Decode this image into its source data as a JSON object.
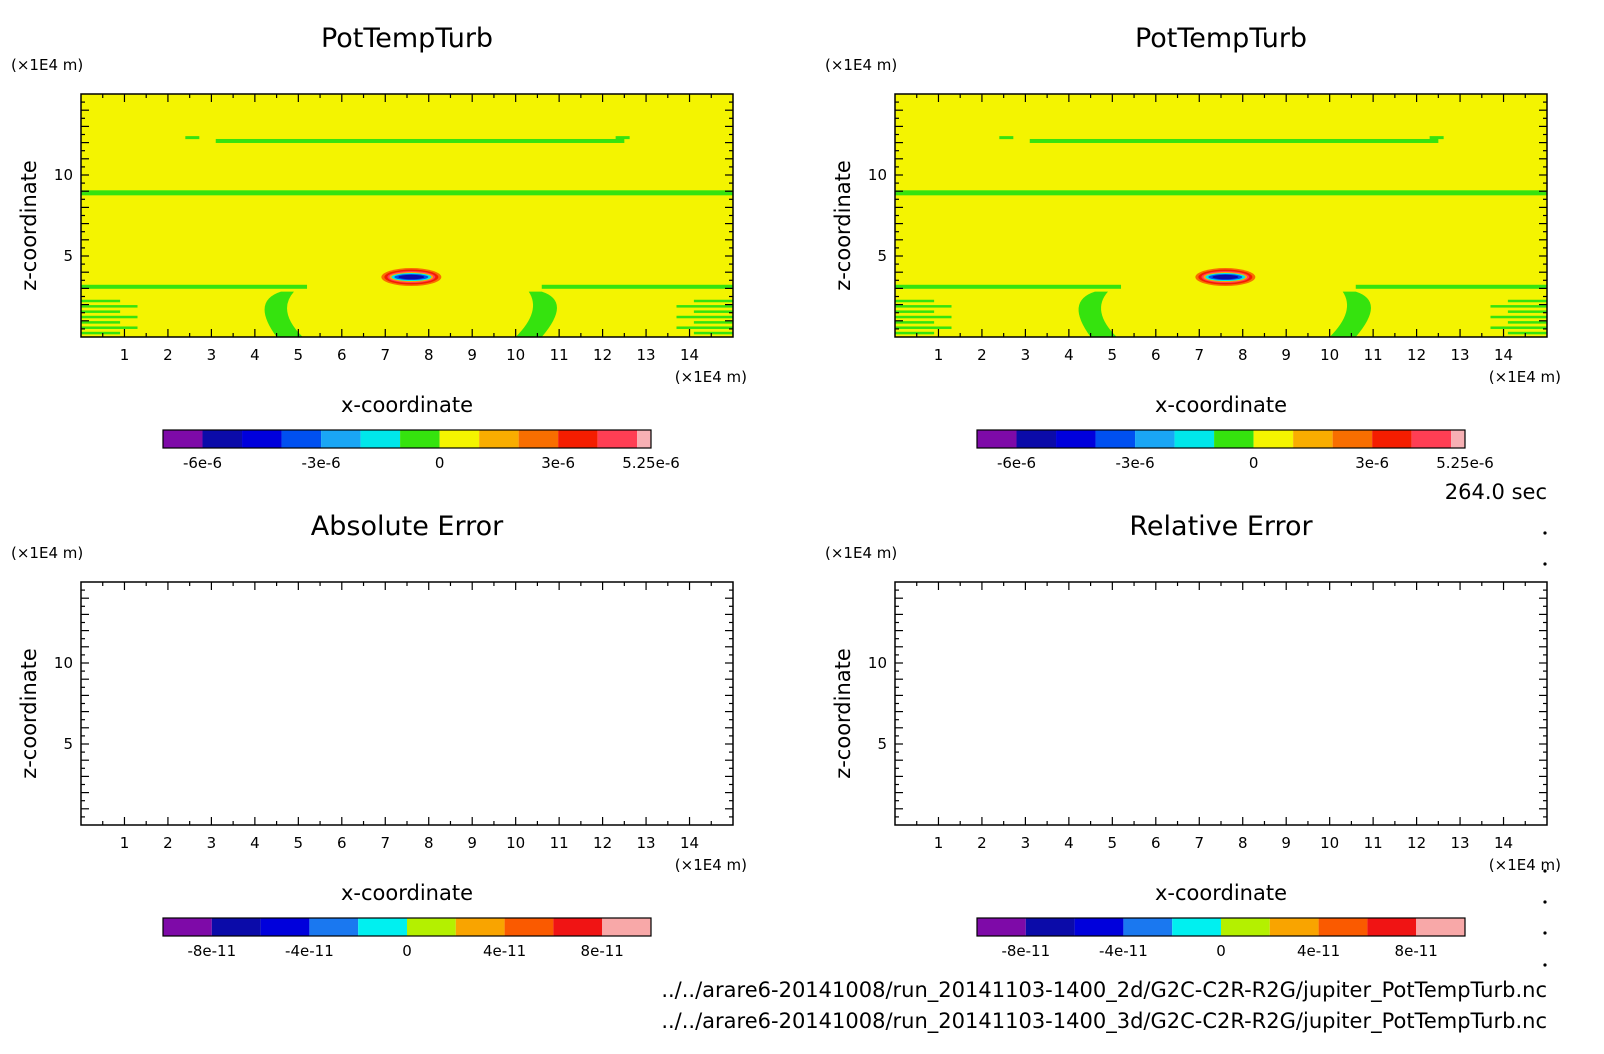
{
  "figure": {
    "time_label": "264.0 sec",
    "file_paths": [
      "../../arare6-20141008/run_20141103-1400_2d/G2C-C2R-R2G/jupiter_PotTempTurb.nc",
      "../../arare6-20141008/run_20141103-1400_3d/G2C-C2R-R2G/jupiter_PotTempTurb.nc"
    ],
    "grid": false
  },
  "chart_data": [
    {
      "type": "heatmap",
      "title": "PotTempTurb",
      "xlabel": "x-coordinate",
      "ylabel": "z-coordinate",
      "x_unit": "(×1E4 m)",
      "y_unit": "(×1E4 m)",
      "xlim": [
        0,
        15
      ],
      "ylim": [
        0,
        15
      ],
      "x_ticks": [
        "1",
        "2",
        "3",
        "4",
        "5",
        "6",
        "7",
        "8",
        "9",
        "10",
        "11",
        "12",
        "13",
        "14"
      ],
      "y_ticks": [
        "5",
        "10"
      ],
      "field": {
        "background": "0",
        "anomaly": {
          "x_center": 7.6,
          "z_center": 3.7,
          "max": "5.25e-6",
          "min": "-6e-6"
        },
        "near_zero_bands_z": [
          12.1,
          8.9,
          3.1
        ],
        "near_zero_regions": [
          "x≈4-5, z<3",
          "x≈10-11, z<3",
          "x<1.2, z<2.5",
          "x>13.8, z<2.5"
        ]
      },
      "colorbar": {
        "tick_labels": [
          "-6e-6",
          "-3e-6",
          "0",
          "3e-6",
          "5.25e-6"
        ],
        "colors": [
          "#7e0aa8",
          "#0b0ba9",
          "#0000dc",
          "#0050f0",
          "#1aa6f5",
          "#00e7ea",
          "#35e30e",
          "#f4f400",
          "#f9ad00",
          "#f86e00",
          "#f41d00",
          "#ff3e54",
          "#f7b0b4"
        ]
      }
    },
    {
      "type": "heatmap",
      "title": "PotTempTurb",
      "xlabel": "x-coordinate",
      "ylabel": "z-coordinate",
      "x_unit": "(×1E4 m)",
      "y_unit": "(×1E4 m)",
      "xlim": [
        0,
        15
      ],
      "ylim": [
        0,
        15
      ],
      "x_ticks": [
        "1",
        "2",
        "3",
        "4",
        "5",
        "6",
        "7",
        "8",
        "9",
        "10",
        "11",
        "12",
        "13",
        "14"
      ],
      "y_ticks": [
        "5",
        "10"
      ],
      "field": {
        "background": "0",
        "anomaly": {
          "x_center": 7.6,
          "z_center": 3.7,
          "max": "5.25e-6",
          "min": "-6e-6"
        },
        "near_zero_bands_z": [
          12.1,
          8.9,
          3.1
        ],
        "near_zero_regions": [
          "x≈4-5, z<3",
          "x≈10-11, z<3",
          "x<1.2, z<2.5",
          "x>13.8, z<2.5"
        ]
      },
      "colorbar": {
        "tick_labels": [
          "-6e-6",
          "-3e-6",
          "0",
          "3e-6",
          "5.25e-6"
        ],
        "colors": [
          "#7e0aa8",
          "#0b0ba9",
          "#0000dc",
          "#0050f0",
          "#1aa6f5",
          "#00e7ea",
          "#35e30e",
          "#f4f400",
          "#f9ad00",
          "#f86e00",
          "#f41d00",
          "#ff3e54",
          "#f7b0b4"
        ]
      }
    },
    {
      "type": "heatmap",
      "title": "Absolute Error",
      "xlabel": "x-coordinate",
      "ylabel": "z-coordinate",
      "x_unit": "(×1E4 m)",
      "y_unit": "(×1E4 m)",
      "xlim": [
        0,
        15
      ],
      "ylim": [
        0,
        15
      ],
      "x_ticks": [
        "1",
        "2",
        "3",
        "4",
        "5",
        "6",
        "7",
        "8",
        "9",
        "10",
        "11",
        "12",
        "13",
        "14"
      ],
      "y_ticks": [
        "5",
        "10"
      ],
      "field": {
        "background": "none"
      },
      "colorbar": {
        "tick_labels": [
          "-8e-11",
          "-4e-11",
          "0",
          "4e-11",
          "8e-11"
        ],
        "colors": [
          "#7e0aa8",
          "#0b0ba9",
          "#0000dc",
          "#1a78f0",
          "#00f0f0",
          "#b4f000",
          "#f9a400",
          "#fa5a00",
          "#f01414",
          "#f8a8a8"
        ]
      }
    },
    {
      "type": "heatmap",
      "title": "Relative Error",
      "xlabel": "x-coordinate",
      "ylabel": "z-coordinate",
      "x_unit": "(×1E4 m)",
      "y_unit": "(×1E4 m)",
      "xlim": [
        0,
        15
      ],
      "ylim": [
        0,
        15
      ],
      "x_ticks": [
        "1",
        "2",
        "3",
        "4",
        "5",
        "6",
        "7",
        "8",
        "9",
        "10",
        "11",
        "12",
        "13",
        "14"
      ],
      "y_ticks": [
        "5",
        "10"
      ],
      "field": {
        "background": "none"
      },
      "colorbar": {
        "tick_labels": [
          "-8e-11",
          "-4e-11",
          "0",
          "4e-11",
          "8e-11"
        ],
        "colors": [
          "#7e0aa8",
          "#0b0ba9",
          "#0000dc",
          "#1a78f0",
          "#00f0f0",
          "#b4f000",
          "#f9a400",
          "#fa5a00",
          "#f01414",
          "#f8a8a8"
        ]
      }
    }
  ]
}
